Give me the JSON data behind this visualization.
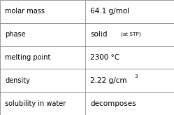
{
  "rows": [
    {
      "label": "molar mass",
      "value": "64.1 g/mol",
      "superscript": null,
      "small_text": null
    },
    {
      "label": "phase",
      "value": "solid",
      "superscript": null,
      "small_text": "(at STP)"
    },
    {
      "label": "melting point",
      "value": "2300 °C",
      "superscript": null,
      "small_text": null
    },
    {
      "label": "density",
      "value": "2.22 g/cm",
      "superscript": "3",
      "small_text": null
    },
    {
      "label": "solubility in water",
      "value": "decomposes",
      "superscript": null,
      "small_text": null
    }
  ],
  "col_split": 0.488,
  "background_color": "#ffffff",
  "border_color": "#888888",
  "text_color": "#000000",
  "label_fontsize": 7.0,
  "value_fontsize": 7.5,
  "small_fontsize": 5.2,
  "super_fontsize": 5.0,
  "figwidth": 2.49,
  "figheight": 1.64,
  "dpi": 100
}
